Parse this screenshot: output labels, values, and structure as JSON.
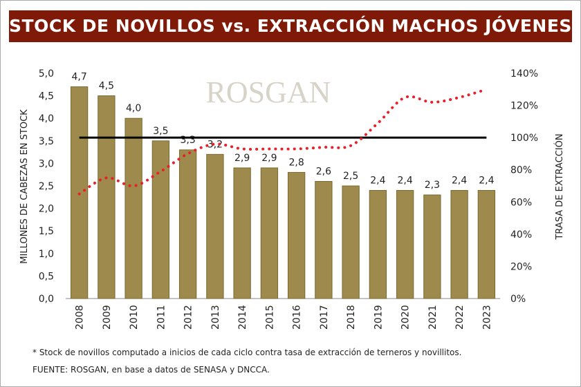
{
  "header": {
    "title": "STOCK DE NOVILLOS vs. EXTRACCIÓN MACHOS JÓVENES"
  },
  "watermark": "ROSGAN",
  "chart_data": {
    "type": "bar+line",
    "title": "STOCK DE NOVILLOS vs. EXTRACCIÓN MACHOS JÓVENES",
    "categories": [
      "2008",
      "2009",
      "2010",
      "2011",
      "2012",
      "2013",
      "2014",
      "2015",
      "2016",
      "2017",
      "2018",
      "2019",
      "2020",
      "2021",
      "2022",
      "2023"
    ],
    "bar_values": [
      4.7,
      4.5,
      4.0,
      3.5,
      3.3,
      3.2,
      2.9,
      2.9,
      2.8,
      2.6,
      2.5,
      2.4,
      2.4,
      2.3,
      2.4,
      2.4
    ],
    "bar_labels": [
      "4,7",
      "4,5",
      "4,0",
      "3,5",
      "3,3",
      "3,2",
      "2,9",
      "2,9",
      "2,8",
      "2,6",
      "2,5",
      "2,4",
      "2,4",
      "2,3",
      "2,4",
      "2,4"
    ],
    "line_values_pct": [
      65,
      75,
      70,
      79,
      90,
      96,
      93,
      93,
      93,
      94,
      95,
      109,
      125,
      122,
      125,
      130
    ],
    "reference_line_pct": 100,
    "ylabel": "MILLONES DE CABEZAS EN STOCK",
    "y2label": "TRASA DE EXTRACCIÓN",
    "ylim": [
      0,
      5
    ],
    "y2lim": [
      0,
      140
    ],
    "yticks": [
      "0,0",
      "0,5",
      "1,0",
      "1,5",
      "2,0",
      "2,5",
      "3,0",
      "3,5",
      "4,0",
      "4,5",
      "5,0"
    ],
    "y2ticks": [
      "0%",
      "20%",
      "40%",
      "60%",
      "80%",
      "100%",
      "120%",
      "140%"
    ],
    "colors": {
      "bar": "#9e8a4c",
      "bar_edge": "#7a6a30",
      "line": "#e8202a",
      "reference": "#000000",
      "header": "#7f1a08"
    },
    "grid": false
  },
  "notes": {
    "footnote": "* Stock de novillos computado a inicios de cada ciclo contra tasa de extracción de terneros y novillitos.",
    "source": "FUENTE: ROSGAN, en base a datos de SENASA y DNCCA."
  }
}
